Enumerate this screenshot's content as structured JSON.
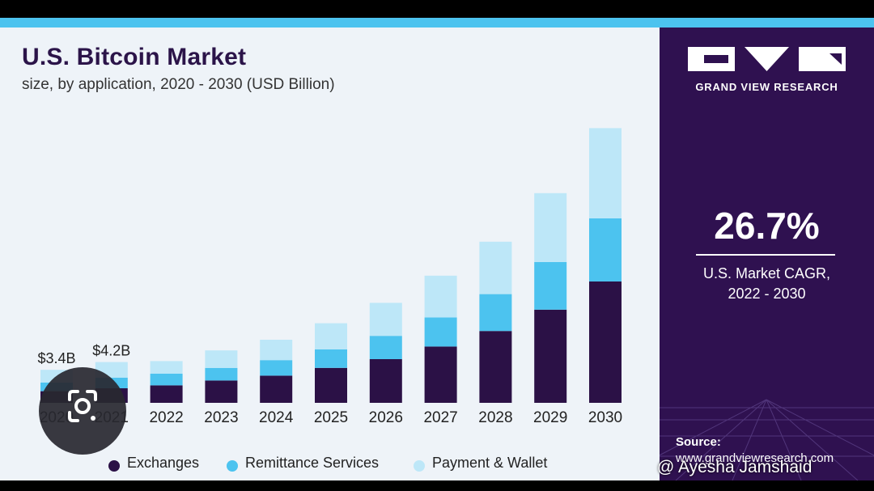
{
  "header": {
    "title": "U.S. Bitcoin Market",
    "subtitle": "size, by application, 2020 - 2030 (USD Billion)"
  },
  "sidebar": {
    "brand": "GRAND VIEW RESEARCH",
    "cagr_value": "26.7%",
    "cagr_label_line1": "U.S. Market CAGR,",
    "cagr_label_line2": "2022 - 2030",
    "source_title": "Source:",
    "source_url": "www.grandviewresearch.com"
  },
  "watermark": "@ Ayesha Jamshaid",
  "colors": {
    "exchanges": "#2b1146",
    "remittance": "#4cc3ef",
    "payment": "#bde7f8",
    "sidebar_bg": "#2f1150",
    "accent": "#4cc3ef"
  },
  "chart_data": {
    "type": "bar",
    "stacked": true,
    "title": "U.S. Bitcoin Market",
    "subtitle": "size, by application, 2020 - 2030 (USD Billion)",
    "categories": [
      "2020",
      "2021",
      "2022",
      "2023",
      "2024",
      "2025",
      "2026",
      "2027",
      "2028",
      "2029",
      "2030"
    ],
    "series": [
      {
        "name": "Exchanges",
        "values": [
          1.2,
          1.5,
          1.8,
          2.3,
          2.8,
          3.6,
          4.5,
          5.8,
          7.4,
          9.6,
          12.5
        ]
      },
      {
        "name": "Remittance Services",
        "values": [
          0.9,
          1.1,
          1.2,
          1.3,
          1.6,
          1.9,
          2.4,
          3.0,
          3.8,
          4.9,
          6.5
        ]
      },
      {
        "name": "Payment & Wallet",
        "values": [
          1.3,
          1.6,
          1.3,
          1.8,
          2.1,
          2.7,
          3.4,
          4.3,
          5.4,
          7.1,
          9.3
        ]
      }
    ],
    "data_labels": [
      {
        "category": "2020",
        "text": "$3.4B"
      },
      {
        "category": "2021",
        "text": "$4.2B"
      }
    ],
    "legend": [
      "Exchanges",
      "Remittance Services",
      "Payment & Wallet"
    ],
    "legend_position": "bottom",
    "grid": false,
    "ylim": [
      0,
      30
    ]
  }
}
